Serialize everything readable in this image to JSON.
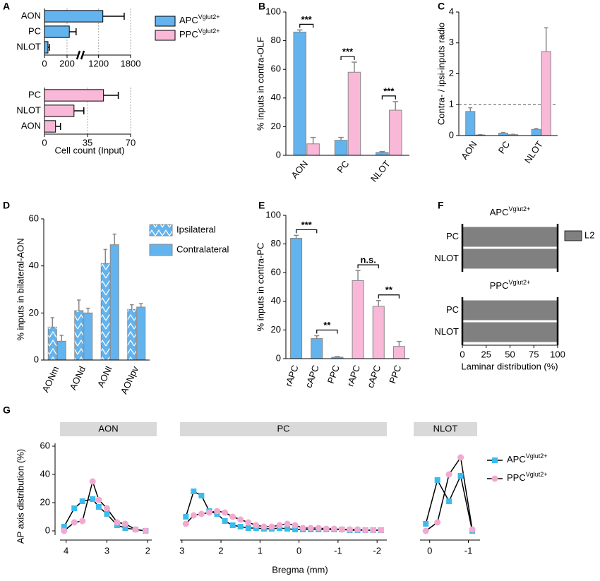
{
  "chart_data": [
    {
      "panel": "A",
      "type": "hbar",
      "xlabel": "Cell count (Input)",
      "grid": true,
      "panels": [
        {
          "categories": [
            "AON",
            "PC",
            "NLOT"
          ],
          "xlim": [
            0,
            1800
          ],
          "xbreak": [
            300,
            900
          ],
          "xticks": [
            0,
            200,
            1200,
            1800
          ],
          "series": [
            {
              "name": "APC",
              "name_sup": "Vglut2+",
              "color": "#63b3ee",
              "values": [
                1280,
                220,
                31
              ],
              "errors": [
                400,
                60,
                12
              ]
            }
          ]
        },
        {
          "categories": [
            "PC",
            "NLOT",
            "AON"
          ],
          "xlim": [
            0,
            70
          ],
          "xticks": [
            0,
            35,
            70
          ],
          "series": [
            {
              "name": "PPC",
              "name_sup": "Vglut2+",
              "color": "#f9b8d8",
              "values": [
                48,
                24,
                9
              ],
              "errors": [
                12,
                8,
                4
              ]
            }
          ]
        }
      ]
    },
    {
      "panel": "B",
      "type": "bar",
      "ylabel": "% inputs in contra-OLF",
      "categories": [
        "AON",
        "PC",
        "NLOT"
      ],
      "ylim": [
        0,
        100
      ],
      "yticks": [
        0,
        20,
        40,
        60,
        80,
        100
      ],
      "series": [
        {
          "color": "#63b3ee",
          "values": [
            86,
            10.5,
            2
          ],
          "errors": [
            1.5,
            2,
            0.6
          ]
        },
        {
          "color": "#f9b8d8",
          "values": [
            8,
            58,
            31.5
          ],
          "errors": [
            4.5,
            7,
            6
          ]
        }
      ],
      "annotations": [
        {
          "text": "***",
          "between": [
            0,
            1
          ]
        },
        {
          "text": "***",
          "between": [
            2,
            3
          ]
        },
        {
          "text": "***",
          "between": [
            4,
            5
          ]
        }
      ]
    },
    {
      "panel": "C",
      "type": "bar",
      "ylabel": "Contra- / ipsi-inputs radio",
      "categories": [
        "AON",
        "PC",
        "NLOT"
      ],
      "ylim": [
        0,
        4
      ],
      "yticks": [
        0,
        1,
        2,
        3,
        4
      ],
      "refline": 1,
      "series": [
        {
          "color": "#63b3ee",
          "values": [
            0.78,
            0.08,
            0.2
          ],
          "errors": [
            0.12,
            0.02,
            0.03
          ]
        },
        {
          "color": "#f9b8d8",
          "values": [
            0.02,
            0.03,
            2.72
          ],
          "errors": [
            0.01,
            0.01,
            0.77
          ]
        }
      ]
    },
    {
      "panel": "D",
      "type": "bar",
      "ylabel": "% inputs in bilateral-AON",
      "categories": [
        "AONm",
        "AONd",
        "AONl",
        "AONpv"
      ],
      "ylim": [
        0,
        60
      ],
      "yticks": [
        0,
        20,
        40,
        60
      ],
      "series": [
        {
          "name": "Ipsilateral",
          "color": "#63b3ee",
          "hatch": true,
          "values": [
            14,
            21,
            41,
            21.5
          ],
          "errors": [
            4,
            4.5,
            6,
            2
          ]
        },
        {
          "name": "Contralateral",
          "color": "#63b3ee",
          "values": [
            8,
            20,
            49,
            22.5
          ],
          "errors": [
            2.5,
            2,
            4.5,
            1.5
          ]
        }
      ]
    },
    {
      "panel": "E",
      "type": "bar",
      "ylabel": "% inputs in contra-PC",
      "categories": [
        "rAPC",
        "cAPC",
        "PPC",
        "rAPC",
        "cAPC",
        "PPC"
      ],
      "ylim": [
        0,
        100
      ],
      "yticks": [
        0,
        20,
        40,
        60,
        80,
        100
      ],
      "series": [
        {
          "color": "#63b3ee",
          "values": [
            84,
            14,
            1,
            null,
            null,
            null
          ],
          "errors": [
            2,
            2,
            0.5,
            null,
            null,
            null
          ]
        },
        {
          "color": "#f9b8d8",
          "values": [
            null,
            null,
            null,
            54.5,
            36.5,
            8.5
          ],
          "errors": [
            null,
            null,
            null,
            7,
            4,
            3.5
          ]
        }
      ],
      "annotations": [
        {
          "text": "***",
          "between": [
            0,
            1
          ]
        },
        {
          "text": "**",
          "between": [
            1,
            2
          ]
        },
        {
          "text": "n.s.",
          "between": [
            3,
            4
          ]
        },
        {
          "text": "**",
          "between": [
            4,
            5
          ]
        }
      ]
    },
    {
      "panel": "F",
      "type": "stacked-hbar",
      "xlabel": "Laminar distribution (%)",
      "xlim": [
        0,
        100
      ],
      "xticks": [
        0,
        25,
        50,
        75,
        100
      ],
      "panels": [
        {
          "title": "APC",
          "title_sup": "Vglut2+",
          "categories": [
            "PC",
            "NLOT"
          ],
          "series": [
            {
              "name": "L2",
              "color": "#808080",
              "values": [
                100,
                100
              ]
            }
          ]
        },
        {
          "title": "PPC",
          "title_sup": "Vglut2+",
          "categories": [
            "PC",
            "NLOT"
          ],
          "series": [
            {
              "color": "#808080",
              "values": [
                100,
                100
              ]
            }
          ]
        }
      ]
    },
    {
      "panel": "G",
      "type": "line",
      "ylabel": "AP axis distribution (%)",
      "xlabel": "Bregma (mm)",
      "ylim": [
        -3,
        62
      ],
      "yticks": [
        0,
        20,
        40,
        60
      ],
      "legend": [
        {
          "name": "APC",
          "name_sup": "Vglut2+",
          "color": "#3cbcec",
          "marker": "square"
        },
        {
          "name": "PPC",
          "name_sup": "Vglut2+",
          "color": "#f2a9cf",
          "marker": "circle"
        }
      ],
      "panels": [
        {
          "title": "AON",
          "xlim": [
            4.15,
            1.9
          ],
          "xticks": [
            4,
            3,
            2
          ],
          "x": [
            4.05,
            3.8,
            3.6,
            3.35,
            3.2,
            3.0,
            2.75,
            2.55,
            2.3,
            2.05
          ],
          "series": [
            {
              "values": [
                3,
                16,
                21,
                22.5,
                17,
                12,
                4,
                2,
                1,
                0
              ]
            },
            {
              "values": [
                0,
                6,
                7,
                35,
                22,
                16,
                6,
                5,
                1,
                0
              ]
            }
          ]
        },
        {
          "title": "PC",
          "xlim": [
            3.05,
            -2.25
          ],
          "xticks": [
            3,
            2,
            1,
            0,
            -1,
            -2
          ],
          "x": [
            2.9,
            2.7,
            2.5,
            2.3,
            2.1,
            1.9,
            1.7,
            1.5,
            1.3,
            1.1,
            0.9,
            0.7,
            0.5,
            0.3,
            0.1,
            -0.1,
            -0.3,
            -0.5,
            -0.7,
            -0.9,
            -1.1,
            -1.3,
            -1.5,
            -1.7,
            -1.9,
            -2.1
          ],
          "series": [
            {
              "values": [
                10,
                28,
                25,
                14,
                12,
                7,
                4,
                3,
                2,
                2,
                1.5,
                1.5,
                2,
                1.5,
                1,
                1,
                1,
                1,
                1,
                1,
                1,
                0.5,
                0.5,
                0.5,
                0.5,
                0.5
              ]
            },
            {
              "values": [
                5,
                11,
                12,
                13,
                14,
                13,
                10,
                8,
                6,
                4,
                3,
                3,
                4,
                5,
                4,
                2,
                2,
                2,
                1.5,
                1.5,
                1,
                1,
                1,
                0.5,
                0.5,
                0.5
              ]
            }
          ]
        },
        {
          "title": "NLOT",
          "xlim": [
            0.25,
            -1.3
          ],
          "xticks": [
            0,
            -1
          ],
          "x": [
            0.1,
            -0.2,
            -0.5,
            -0.8,
            -1.1
          ],
          "series": [
            {
              "values": [
                5,
                36,
                21,
                39,
                0
              ]
            },
            {
              "values": [
                0,
                6,
                40,
                52,
                1
              ]
            }
          ]
        }
      ]
    }
  ]
}
